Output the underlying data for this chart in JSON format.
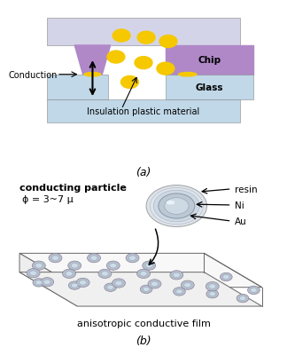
{
  "fig_width": 3.24,
  "fig_height": 4.1,
  "dpi": 100,
  "bg_color": "#ffffff",
  "panel_a": {
    "label": "(a)",
    "chip_top_color": "#d4d4e8",
    "chip_color": "#b088c8",
    "glass_color": "#c0d8e8",
    "insulation_color": "#c0d8e8",
    "particle_color": "#f5c800",
    "conduction_text": "Conduction",
    "chip_text": "Chip",
    "glass_text": "Glass",
    "insulation_text": "Insulation plastic material"
  },
  "panel_b": {
    "label": "(b)",
    "conducting_particle_text": "conducting particle",
    "phi_text": "ϕ = 3~7 μ",
    "resin_text": "resin",
    "ni_text": "Ni",
    "au_text": "Au",
    "film_label": "anisotropic conductive film"
  }
}
